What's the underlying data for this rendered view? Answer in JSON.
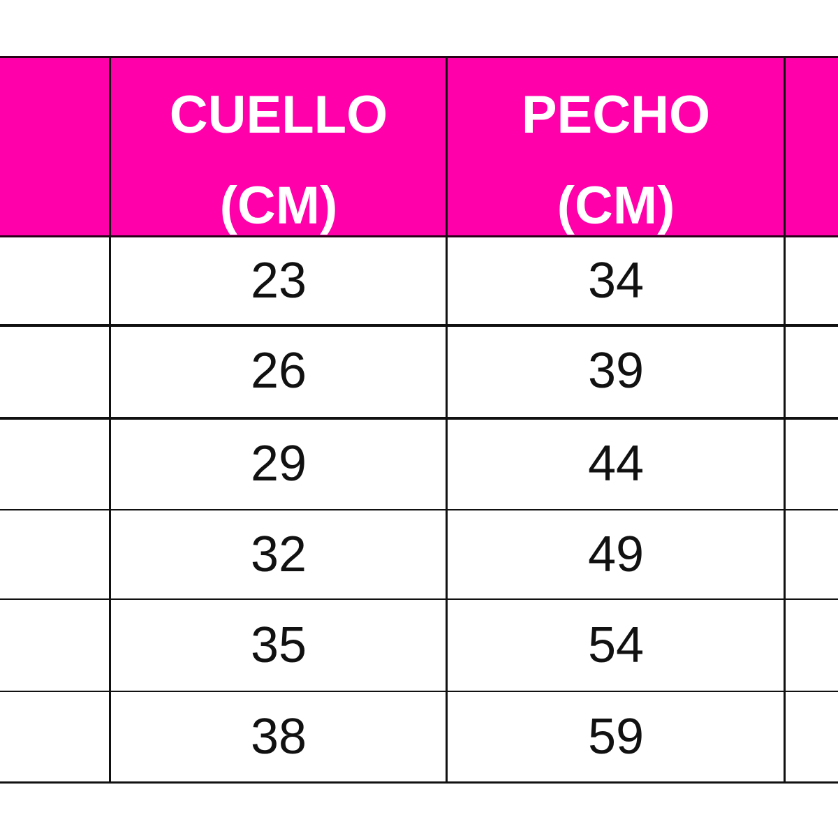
{
  "table": {
    "header_color": "#FF00AA",
    "columns": [
      {
        "line1": "",
        "line2": ""
      },
      {
        "line1": "CUELLO",
        "line2": "(CM)"
      },
      {
        "line1": "PECHO",
        "line2": "(CM)"
      },
      {
        "line1": "",
        "line2": ""
      }
    ],
    "rows": [
      {
        "cuello": "23",
        "pecho": "34"
      },
      {
        "cuello": "26",
        "pecho": "39"
      },
      {
        "cuello": "29",
        "pecho": "44"
      },
      {
        "cuello": "32",
        "pecho": "49"
      },
      {
        "cuello": "35",
        "pecho": "54"
      },
      {
        "cuello": "38",
        "pecho": "59"
      }
    ]
  }
}
